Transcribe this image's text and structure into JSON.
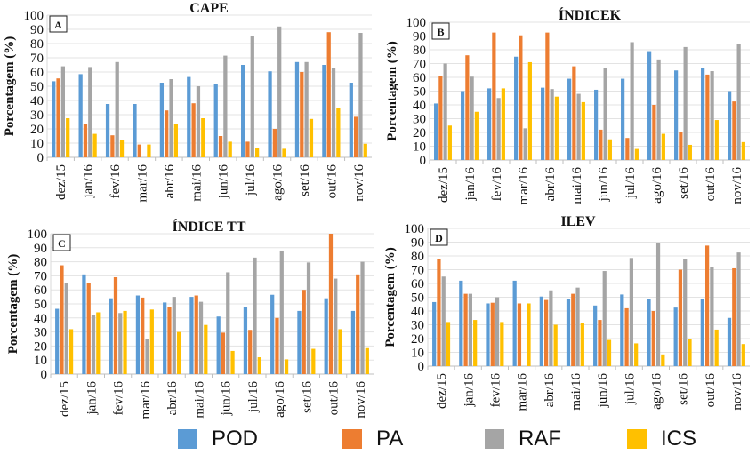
{
  "colors": {
    "POD": "#5B9BD5",
    "PA": "#ED7D31",
    "RAF": "#A5A5A5",
    "ICS": "#FFC000"
  },
  "legend": [
    "POD",
    "PA",
    "RAF",
    "ICS"
  ],
  "chart_data": [
    {
      "type": "bar",
      "title": "CAPE",
      "panel_label": "A",
      "ylabel": "Porcentagem (%)",
      "ylim": [
        0,
        100
      ],
      "yticks": [
        0,
        10,
        20,
        30,
        40,
        50,
        60,
        70,
        80,
        90,
        100
      ],
      "grid": true,
      "categories": [
        "dez/15",
        "jan/16",
        "fev/16",
        "mar/16",
        "abr/16",
        "mai/16",
        "jun/16",
        "jul/16",
        "ago/16",
        "set/16",
        "out/16",
        "nov/16"
      ],
      "series": [
        {
          "name": "POD",
          "values": [
            53.5,
            58.5,
            37.5,
            37.5,
            52.5,
            56.5,
            51.5,
            65,
            60.5,
            67,
            65,
            52.5
          ]
        },
        {
          "name": "PA",
          "values": [
            55.5,
            23.5,
            15.5,
            9,
            33,
            38,
            15,
            11,
            20,
            60,
            88,
            28.5
          ]
        },
        {
          "name": "RAF",
          "values": [
            64,
            63.5,
            67,
            0,
            55,
            50,
            71.5,
            85.5,
            92,
            67,
            63,
            87.5
          ]
        },
        {
          "name": "ICS",
          "values": [
            27.5,
            16.5,
            12,
            9,
            23.5,
            27.5,
            11,
            6.5,
            6,
            27,
            35,
            9.5
          ]
        }
      ]
    },
    {
      "type": "bar",
      "title": "ÍNDICEK",
      "panel_label": "B",
      "ylabel": "Porcentagem (%)",
      "ylim": [
        0,
        100
      ],
      "yticks": [
        0,
        10,
        20,
        30,
        40,
        50,
        60,
        70,
        80,
        90,
        100
      ],
      "grid": true,
      "categories": [
        "dez/15",
        "jan/16",
        "fev/16",
        "mar/16",
        "abr/16",
        "mai/16",
        "jun/16",
        "jul/16",
        "ago/16",
        "set/16",
        "out/16",
        "nov/16"
      ],
      "series": [
        {
          "name": "POD",
          "values": [
            41,
            50,
            52,
            75,
            52.5,
            59,
            51,
            59,
            79,
            65,
            67,
            50
          ]
        },
        {
          "name": "PA",
          "values": [
            61,
            76,
            92.5,
            90.5,
            92.5,
            68,
            22,
            16,
            40,
            20,
            62,
            42.5
          ]
        },
        {
          "name": "RAF",
          "values": [
            70,
            60.5,
            45,
            23,
            51.5,
            48,
            66.5,
            85.5,
            73,
            82,
            64.5,
            84.5
          ]
        },
        {
          "name": "ICS",
          "values": [
            25,
            35,
            52,
            71,
            46,
            42,
            15,
            8,
            19,
            11,
            29,
            13
          ]
        }
      ]
    },
    {
      "type": "bar",
      "title": "ÍNDICE TT",
      "panel_label": "C",
      "ylabel": "Porcentagem (%)",
      "ylim": [
        0,
        100
      ],
      "yticks": [
        0,
        10,
        20,
        30,
        40,
        50,
        60,
        70,
        80,
        90,
        100
      ],
      "grid": true,
      "categories": [
        "dez/15",
        "jan/16",
        "fev/16",
        "mar/16",
        "abr/16",
        "mai/16",
        "jun/16",
        "jul/16",
        "ago/16",
        "set/16",
        "out/16",
        "nov/16"
      ],
      "series": [
        {
          "name": "POD",
          "values": [
            46.5,
            71,
            54,
            56,
            51,
            55,
            41,
            48,
            56.5,
            45,
            54,
            45
          ]
        },
        {
          "name": "PA",
          "values": [
            77.5,
            65,
            69,
            54.5,
            48,
            56,
            29.5,
            31.5,
            40,
            60,
            100,
            71
          ]
        },
        {
          "name": "RAF",
          "values": [
            65,
            42,
            43.5,
            25,
            55,
            51.5,
            72.5,
            83,
            88,
            79.5,
            68,
            80
          ]
        },
        {
          "name": "ICS",
          "values": [
            32,
            44,
            45,
            46,
            30,
            35,
            16.5,
            12,
            10.5,
            18,
            32,
            18.5
          ]
        }
      ]
    },
    {
      "type": "bar",
      "title": "ILEV",
      "panel_label": "D",
      "ylabel": "Porcentagem (%)",
      "ylim": [
        0,
        100
      ],
      "yticks": [
        0,
        10,
        20,
        30,
        40,
        50,
        60,
        70,
        80,
        90,
        100
      ],
      "grid": true,
      "categories": [
        "dez/15",
        "jan/16",
        "fev/16",
        "mar/16",
        "abr/16",
        "mai/16",
        "jun/16",
        "jul/16",
        "ago/16",
        "set/16",
        "out/16",
        "nov/16"
      ],
      "series": [
        {
          "name": "POD",
          "values": [
            46.5,
            62,
            45.5,
            62,
            50.5,
            48.5,
            44,
            52,
            49,
            42.5,
            48.5,
            35
          ]
        },
        {
          "name": "PA",
          "values": [
            78,
            52.5,
            46,
            45.5,
            48,
            52.5,
            33.5,
            42,
            40,
            70,
            87.5,
            71
          ]
        },
        {
          "name": "RAF",
          "values": [
            65,
            52.5,
            50,
            0,
            55,
            57,
            69,
            78.5,
            89.5,
            78,
            72,
            82.5
          ]
        },
        {
          "name": "ICS",
          "values": [
            32,
            33.5,
            32,
            45.5,
            30,
            31,
            19,
            16.5,
            8.5,
            20,
            26.5,
            16
          ]
        }
      ]
    }
  ]
}
